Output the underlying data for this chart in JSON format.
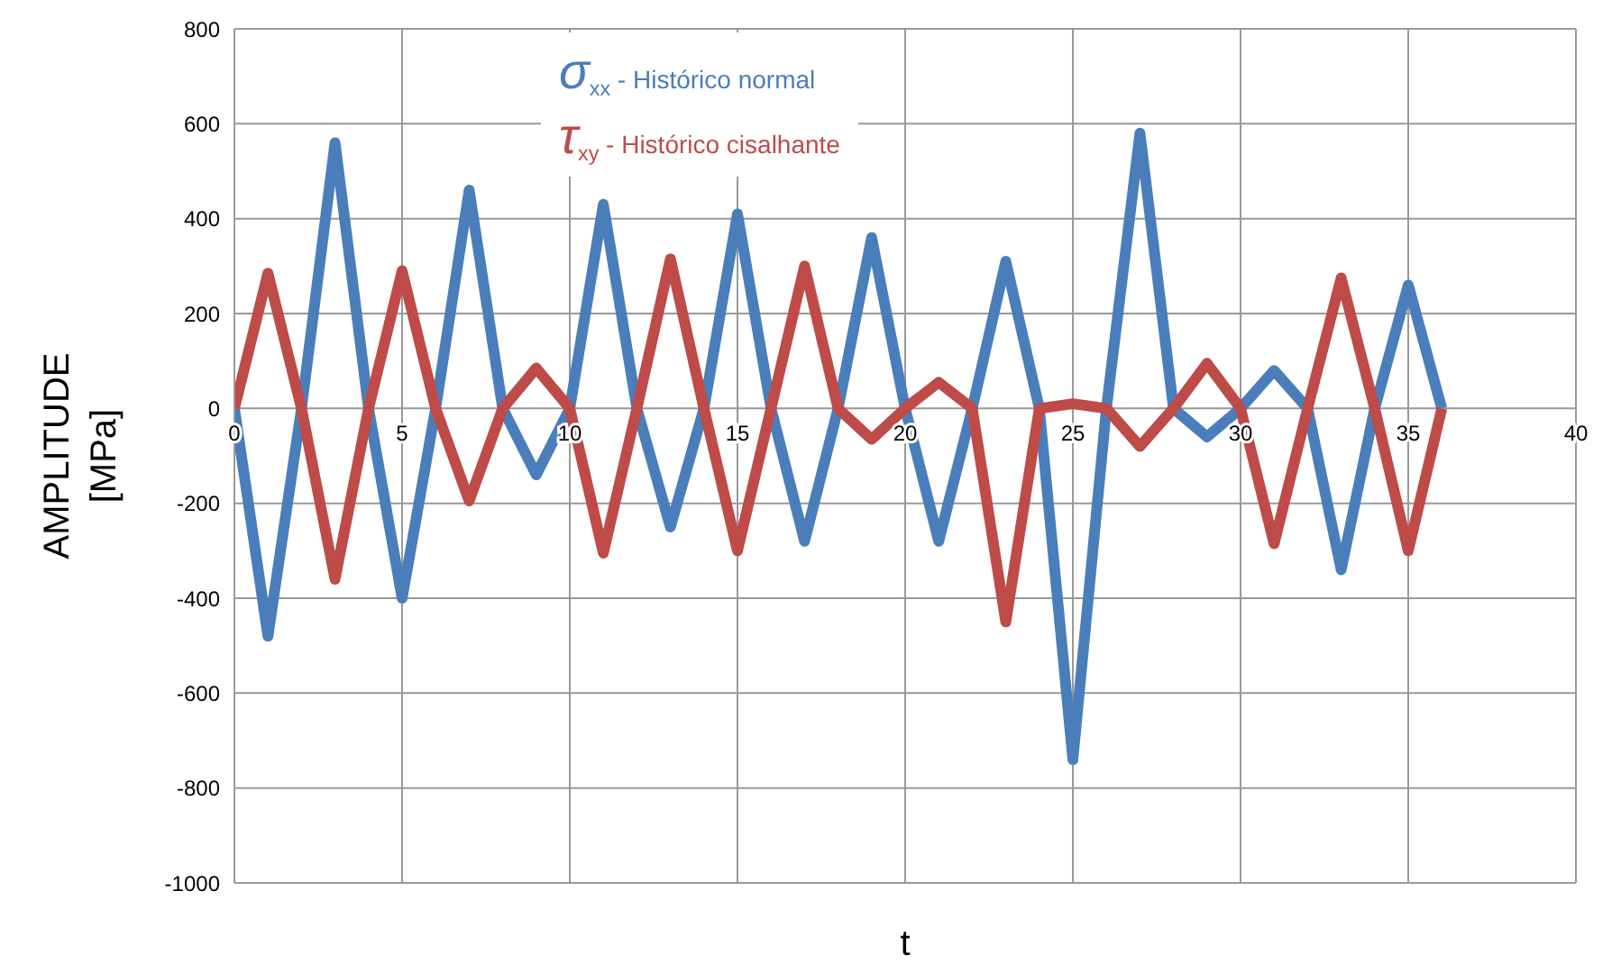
{
  "chart_data": {
    "type": "line",
    "xlabel": "t",
    "ylabel": "AMPLITUDE [MPa]",
    "x": [
      0,
      1,
      2,
      3,
      4,
      5,
      6,
      7,
      8,
      9,
      10,
      11,
      12,
      13,
      14,
      15,
      16,
      17,
      18,
      19,
      20,
      21,
      22,
      23,
      24,
      25,
      26,
      27,
      28,
      29,
      30,
      31,
      32,
      33,
      34,
      35,
      36
    ],
    "series": [
      {
        "name": "σ$_{xx}$ - Histórico normal",
        "color": "#4a7ebb",
        "values": [
          0,
          -480,
          0,
          560,
          0,
          -400,
          0,
          460,
          0,
          -140,
          0,
          430,
          0,
          -250,
          0,
          410,
          0,
          -280,
          0,
          360,
          0,
          -280,
          0,
          310,
          0,
          -740,
          0,
          580,
          0,
          -60,
          0,
          80,
          0,
          -340,
          0,
          260,
          0
        ]
      },
      {
        "name": "τ$_{xy}$ - Histórico cisalhante",
        "color": "#be4b48",
        "values": [
          0,
          285,
          0,
          -360,
          0,
          290,
          0,
          -195,
          0,
          85,
          0,
          -305,
          0,
          315,
          0,
          -300,
          0,
          300,
          0,
          -65,
          0,
          55,
          0,
          -450,
          0,
          10,
          0,
          -80,
          0,
          95,
          0,
          -285,
          0,
          275,
          0,
          -300,
          0
        ]
      }
    ],
    "xlim": [
      0,
      40
    ],
    "xticks": [
      0,
      5,
      10,
      15,
      20,
      25,
      30,
      35,
      40
    ],
    "ylim": [
      -1000,
      800
    ],
    "yticks": [
      -1000,
      -800,
      -600,
      -400,
      -200,
      0,
      200,
      400,
      600,
      800
    ],
    "grid": true,
    "legend": "top",
    "marker": "none",
    "line_style": "solid"
  }
}
